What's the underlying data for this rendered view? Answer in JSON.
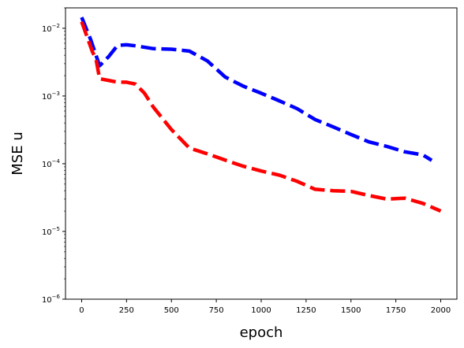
{
  "chart_data": {
    "type": "line",
    "xlabel": "epoch",
    "ylabel": "MSE u",
    "xlim": [
      -90,
      2090
    ],
    "ylim": [
      1e-06,
      0.02
    ],
    "yscale": "log",
    "grid": false,
    "x_ticks": [
      0,
      250,
      500,
      750,
      1000,
      1250,
      1500,
      1750,
      2000
    ],
    "x_tick_labels": [
      "0",
      "250",
      "500",
      "750",
      "1000",
      "1250",
      "1500",
      "1750",
      "2000"
    ],
    "y_ticks": [
      1e-06,
      1e-05,
      0.0001,
      0.001,
      0.01
    ],
    "y_tick_labels": [
      {
        "base": "10",
        "exp": "−6"
      },
      {
        "base": "10",
        "exp": "−5"
      },
      {
        "base": "10",
        "exp": "−4"
      },
      {
        "base": "10",
        "exp": "−3"
      },
      {
        "base": "10",
        "exp": "−2"
      }
    ],
    "series": [
      {
        "color": "#0000ff",
        "line_style": "dashed",
        "x": [
          0,
          50,
          100,
          150,
          200,
          250,
          300,
          400,
          500,
          600,
          700,
          800,
          900,
          1000,
          1100,
          1200,
          1300,
          1400,
          1500,
          1600,
          1700,
          1800,
          1900,
          1950
        ],
        "y": [
          0.0145,
          0.0068,
          0.0028,
          0.0038,
          0.0056,
          0.0057,
          0.0055,
          0.005,
          0.0049,
          0.0046,
          0.0033,
          0.0019,
          0.0014,
          0.0011,
          0.00085,
          0.00065,
          0.00045,
          0.00035,
          0.00027,
          0.00021,
          0.00018,
          0.00015,
          0.000135,
          0.000112
        ]
      },
      {
        "color": "#ff0000",
        "line_style": "dashed",
        "x": [
          0,
          30,
          60,
          80,
          100,
          150,
          200,
          250,
          300,
          350,
          400,
          500,
          600,
          700,
          800,
          900,
          1000,
          1100,
          1200,
          1300,
          1400,
          1500,
          1600,
          1700,
          1800,
          1900,
          2000
        ],
        "y": [
          0.0125,
          0.0075,
          0.0045,
          0.0035,
          0.0018,
          0.0017,
          0.0016,
          0.0016,
          0.0015,
          0.0011,
          0.00068,
          0.00032,
          0.00017,
          0.00014,
          0.000113,
          9.2e-05,
          7.8e-05,
          6.8e-05,
          5.5e-05,
          4.2e-05,
          4e-05,
          3.9e-05,
          3.4e-05,
          3e-05,
          3.1e-05,
          2.6e-05,
          2e-05
        ]
      }
    ]
  }
}
